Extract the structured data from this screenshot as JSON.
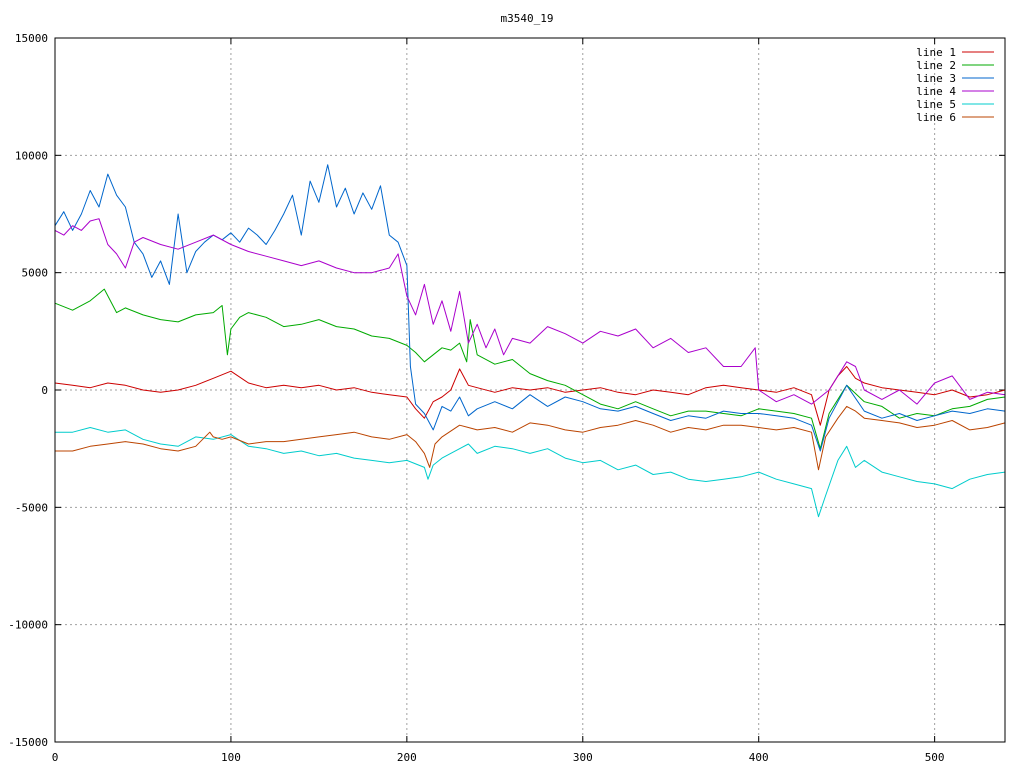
{
  "chart_data": {
    "type": "line",
    "title": "m3540_19",
    "xlabel": "",
    "ylabel": "",
    "xlim": [
      0,
      540
    ],
    "ylim": [
      -15000,
      15000
    ],
    "x_ticks": [
      0,
      100,
      200,
      300,
      400,
      500
    ],
    "y_ticks": [
      -15000,
      -10000,
      -5000,
      0,
      5000,
      10000,
      15000
    ],
    "grid": true,
    "legend_position": "top-right",
    "series": [
      {
        "name": "line 1",
        "color": "#cc0000",
        "x": [
          0,
          10,
          20,
          30,
          40,
          50,
          60,
          70,
          80,
          90,
          100,
          110,
          120,
          130,
          140,
          150,
          160,
          170,
          180,
          190,
          200,
          205,
          210,
          215,
          220,
          225,
          230,
          235,
          240,
          250,
          260,
          270,
          280,
          290,
          300,
          310,
          320,
          330,
          340,
          350,
          360,
          370,
          380,
          390,
          400,
          410,
          420,
          430,
          435,
          440,
          445,
          450,
          455,
          460,
          470,
          480,
          490,
          500,
          510,
          520,
          530,
          540
        ],
        "y": [
          300,
          200,
          100,
          300,
          200,
          0,
          -100,
          0,
          200,
          500,
          800,
          300,
          100,
          200,
          100,
          200,
          0,
          100,
          -100,
          -200,
          -300,
          -800,
          -1200,
          -500,
          -300,
          0,
          900,
          200,
          100,
          -100,
          100,
          0,
          100,
          -100,
          0,
          100,
          -100,
          -200,
          0,
          -100,
          -200,
          100,
          200,
          100,
          0,
          -100,
          100,
          -200,
          -1500,
          0,
          600,
          1000,
          500,
          300,
          100,
          0,
          -100,
          -200,
          0,
          -300,
          -200,
          0
        ]
      },
      {
        "name": "line 2",
        "color": "#00aa00",
        "x": [
          0,
          10,
          20,
          28,
          35,
          40,
          50,
          60,
          70,
          80,
          90,
          95,
          98,
          100,
          105,
          110,
          120,
          130,
          140,
          150,
          160,
          170,
          180,
          190,
          200,
          205,
          210,
          215,
          220,
          225,
          230,
          234,
          236,
          240,
          250,
          260,
          270,
          280,
          290,
          300,
          310,
          320,
          330,
          340,
          350,
          360,
          370,
          380,
          390,
          400,
          410,
          420,
          430,
          435,
          440,
          450,
          460,
          470,
          480,
          490,
          500,
          510,
          520,
          530,
          540
        ],
        "y": [
          3700,
          3400,
          3800,
          4300,
          3300,
          3500,
          3200,
          3000,
          2900,
          3200,
          3300,
          3600,
          1500,
          2600,
          3100,
          3300,
          3100,
          2700,
          2800,
          3000,
          2700,
          2600,
          2300,
          2200,
          1900,
          1600,
          1200,
          1500,
          1800,
          1700,
          2000,
          1200,
          3000,
          1500,
          1100,
          1300,
          700,
          400,
          200,
          -200,
          -600,
          -800,
          -500,
          -800,
          -1100,
          -900,
          -900,
          -1000,
          -1100,
          -800,
          -900,
          -1000,
          -1200,
          -2500,
          -1000,
          200,
          -500,
          -700,
          -1200,
          -1000,
          -1100,
          -800,
          -700,
          -400,
          -300
        ]
      },
      {
        "name": "line 3",
        "color": "#0066cc",
        "x": [
          0,
          5,
          10,
          15,
          20,
          25,
          30,
          35,
          40,
          45,
          50,
          55,
          60,
          65,
          70,
          75,
          80,
          85,
          90,
          95,
          100,
          105,
          110,
          115,
          120,
          125,
          130,
          135,
          140,
          145,
          150,
          155,
          160,
          165,
          170,
          175,
          180,
          185,
          190,
          195,
          200,
          202,
          205,
          210,
          215,
          220,
          225,
          230,
          235,
          240,
          250,
          260,
          270,
          280,
          290,
          300,
          310,
          320,
          330,
          340,
          350,
          360,
          370,
          380,
          390,
          400,
          410,
          420,
          430,
          435,
          440,
          450,
          460,
          470,
          480,
          490,
          500,
          510,
          520,
          530,
          540
        ],
        "y": [
          7000,
          7600,
          6800,
          7500,
          8500,
          7800,
          9200,
          8300,
          7800,
          6300,
          5800,
          4800,
          5500,
          4500,
          7500,
          5000,
          5900,
          6300,
          6600,
          6400,
          6700,
          6300,
          6900,
          6600,
          6200,
          6800,
          7500,
          8300,
          6600,
          8900,
          8000,
          9600,
          7800,
          8600,
          7500,
          8400,
          7700,
          8700,
          6600,
          6300,
          5300,
          1000,
          -600,
          -1000,
          -1700,
          -700,
          -900,
          -300,
          -1100,
          -800,
          -500,
          -800,
          -200,
          -700,
          -300,
          -500,
          -800,
          -900,
          -700,
          -1000,
          -1300,
          -1100,
          -1200,
          -900,
          -1000,
          -1000,
          -1100,
          -1200,
          -1500,
          -2600,
          -1200,
          200,
          -900,
          -1200,
          -1000,
          -1300,
          -1100,
          -900,
          -1000,
          -800,
          -900
        ]
      },
      {
        "name": "line 4",
        "color": "#aa00cc",
        "x": [
          0,
          5,
          10,
          15,
          20,
          25,
          30,
          35,
          40,
          45,
          50,
          60,
          70,
          80,
          90,
          100,
          110,
          120,
          130,
          140,
          150,
          160,
          170,
          180,
          190,
          195,
          200,
          205,
          210,
          215,
          220,
          225,
          230,
          235,
          240,
          245,
          250,
          255,
          260,
          270,
          280,
          290,
          300,
          310,
          320,
          330,
          340,
          350,
          360,
          370,
          380,
          390,
          398,
          400,
          410,
          420,
          430,
          440,
          450,
          455,
          460,
          470,
          480,
          490,
          500,
          510,
          520,
          530,
          540
        ],
        "y": [
          6800,
          6600,
          7000,
          6800,
          7200,
          7300,
          6200,
          5800,
          5200,
          6300,
          6500,
          6200,
          6000,
          6300,
          6600,
          6200,
          5900,
          5700,
          5500,
          5300,
          5500,
          5200,
          5000,
          5000,
          5200,
          5800,
          4000,
          3200,
          4500,
          2800,
          3800,
          2500,
          4200,
          2000,
          2800,
          1800,
          2600,
          1500,
          2200,
          2000,
          2700,
          2400,
          2000,
          2500,
          2300,
          2600,
          1800,
          2200,
          1600,
          1800,
          1000,
          1000,
          1800,
          0,
          -500,
          -200,
          -600,
          0,
          1200,
          1000,
          0,
          -400,
          0,
          -600,
          300,
          600,
          -400,
          -100,
          -200
        ]
      },
      {
        "name": "line 5",
        "color": "#00cccc",
        "x": [
          0,
          10,
          20,
          30,
          40,
          50,
          60,
          70,
          80,
          90,
          100,
          110,
          120,
          130,
          140,
          150,
          160,
          170,
          180,
          190,
          200,
          210,
          212,
          215,
          220,
          230,
          235,
          240,
          250,
          260,
          270,
          280,
          290,
          300,
          310,
          320,
          330,
          340,
          350,
          360,
          370,
          380,
          390,
          400,
          410,
          420,
          430,
          434,
          438,
          445,
          450,
          455,
          460,
          470,
          480,
          490,
          500,
          510,
          520,
          530,
          540
        ],
        "y": [
          -1800,
          -1800,
          -1600,
          -1800,
          -1700,
          -2100,
          -2300,
          -2400,
          -2000,
          -2100,
          -1900,
          -2400,
          -2500,
          -2700,
          -2600,
          -2800,
          -2700,
          -2900,
          -3000,
          -3100,
          -3000,
          -3300,
          -3800,
          -3200,
          -2900,
          -2500,
          -2300,
          -2700,
          -2400,
          -2500,
          -2700,
          -2500,
          -2900,
          -3100,
          -3000,
          -3400,
          -3200,
          -3600,
          -3500,
          -3800,
          -3900,
          -3800,
          -3700,
          -3500,
          -3800,
          -4000,
          -4200,
          -5400,
          -4500,
          -3000,
          -2400,
          -3300,
          -3000,
          -3500,
          -3700,
          -3900,
          -4000,
          -4200,
          -3800,
          -3600,
          -3500
        ]
      },
      {
        "name": "line 6",
        "color": "#bb4400",
        "x": [
          0,
          10,
          20,
          30,
          40,
          50,
          60,
          70,
          80,
          88,
          90,
          95,
          100,
          110,
          120,
          130,
          140,
          150,
          160,
          170,
          180,
          190,
          200,
          205,
          210,
          213,
          216,
          220,
          230,
          235,
          240,
          250,
          260,
          270,
          280,
          290,
          300,
          310,
          320,
          330,
          340,
          350,
          360,
          370,
          380,
          390,
          400,
          410,
          420,
          430,
          434,
          438,
          445,
          450,
          455,
          460,
          470,
          480,
          490,
          500,
          510,
          520,
          530,
          540
        ],
        "y": [
          -2600,
          -2600,
          -2400,
          -2300,
          -2200,
          -2300,
          -2500,
          -2600,
          -2400,
          -1800,
          -2000,
          -2100,
          -2000,
          -2300,
          -2200,
          -2200,
          -2100,
          -2000,
          -1900,
          -1800,
          -2000,
          -2100,
          -1900,
          -2200,
          -2700,
          -3300,
          -2300,
          -2000,
          -1500,
          -1600,
          -1700,
          -1600,
          -1800,
          -1400,
          -1500,
          -1700,
          -1800,
          -1600,
          -1500,
          -1300,
          -1500,
          -1800,
          -1600,
          -1700,
          -1500,
          -1500,
          -1600,
          -1700,
          -1600,
          -1800,
          -3400,
          -2000,
          -1200,
          -700,
          -900,
          -1200,
          -1300,
          -1400,
          -1600,
          -1500,
          -1300,
          -1700,
          -1600,
          -1400
        ]
      }
    ]
  }
}
